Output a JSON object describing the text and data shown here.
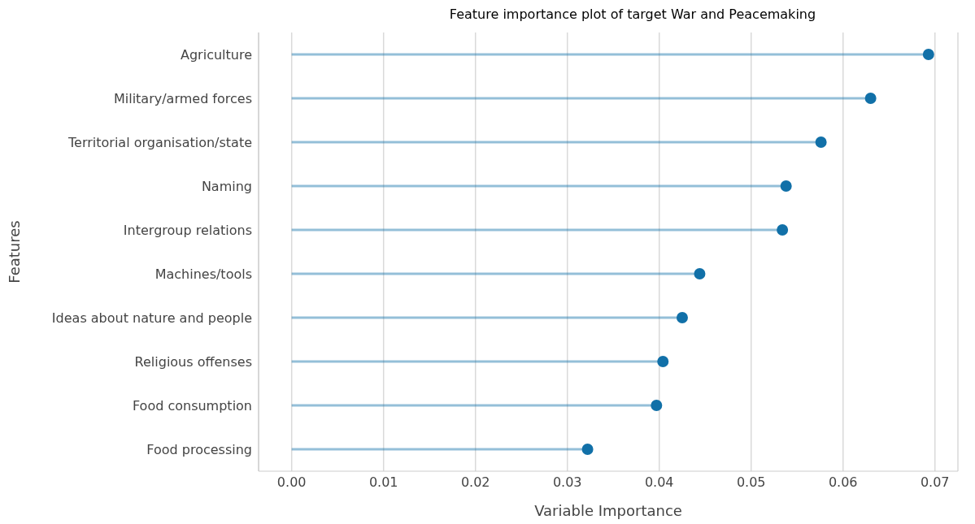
{
  "chart_data": {
    "type": "lollipop",
    "orientation": "horizontal",
    "title": "Feature importance plot of target War and Peacemaking",
    "xlabel": "Variable Importance",
    "ylabel": "Features",
    "categories": [
      "Agriculture",
      "Military/armed forces",
      "Territorial organisation/state",
      "Naming",
      "Intergroup relations",
      "Machines/tools",
      "Ideas about nature and people",
      "Religious offenses",
      "Food consumption",
      "Food processing"
    ],
    "values": [
      0.0693,
      0.063,
      0.0576,
      0.0538,
      0.0534,
      0.0444,
      0.0425,
      0.0404,
      0.0397,
      0.0322
    ],
    "color": "#1170a8",
    "xlim": [
      -0.0036,
      0.0725
    ],
    "xticks": [
      {
        "value": 0,
        "label": "0.00"
      },
      {
        "value": 0.01,
        "label": "0.01"
      },
      {
        "value": 0.02,
        "label": "0.02"
      },
      {
        "value": 0.03,
        "label": "0.03"
      },
      {
        "value": 0.04,
        "label": "0.04"
      },
      {
        "value": 0.05,
        "label": "0.05"
      },
      {
        "value": 0.06,
        "label": "0.06"
      },
      {
        "value": 0.07,
        "label": "0.07"
      }
    ],
    "grid": "x",
    "marker": "circle"
  }
}
